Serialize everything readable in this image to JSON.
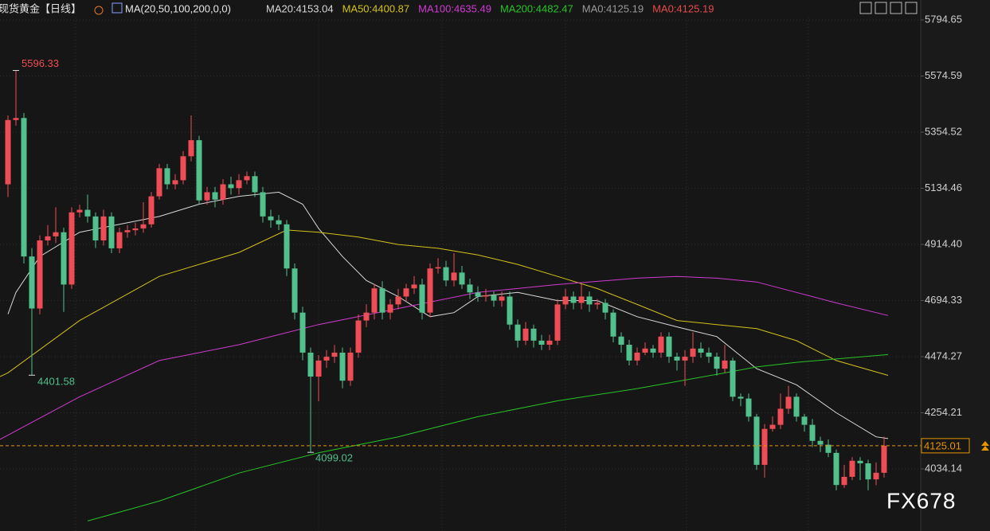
{
  "chart_data": {
    "type": "candlestick",
    "title": "现货黄金【日线】",
    "indicator": "MA(20,50,100,200,0,0)",
    "legend": [
      {
        "text": "MA20:4153.04",
        "color": "#d9d9d9"
      },
      {
        "text": "MA50:4400.87",
        "color": "#d4c21a"
      },
      {
        "text": "MA100:4635.49",
        "color": "#d23ad2"
      },
      {
        "text": "MA200:4482.47",
        "color": "#27c427"
      },
      {
        "text": "MA0:4125.19",
        "color": "#9a9a9a"
      },
      {
        "text": "MA0:4125.19",
        "color": "#e84a4a"
      }
    ],
    "watermark": "FX678",
    "up_color": "#ee4d55",
    "down_color": "#52c08c",
    "open": [
      5150,
      5402,
      5410,
      4867,
      4663,
      4930,
      4946,
      4962,
      4757,
      5040,
      5050,
      5024,
      4930,
      5024,
      4899,
      4962,
      4970,
      4977,
      4993,
      5103,
      5213,
      5150,
      5166,
      5260,
      5323,
      5087,
      5119,
      5090,
      5150,
      5135,
      5166,
      5182,
      5119,
      5024,
      5009,
      4993,
      4820,
      4647,
      4490,
      4396,
      4459,
      4474,
      4490,
      4380,
      4490,
      4616,
      4647,
      4742,
      4647,
      4679,
      4710,
      4742,
      4757,
      4647,
      4820,
      4825,
      4773,
      4804,
      4757,
      4726,
      4710,
      4715,
      4694,
      4710,
      4600,
      4537,
      4584,
      4537,
      4521,
      4537,
      4679,
      4710,
      4685,
      4710,
      4679,
      4685,
      4647,
      4553,
      4521,
      4459,
      4490,
      4506,
      4490,
      4553,
      4474,
      4459,
      4474,
      4506,
      4490,
      4474,
      4427,
      4459,
      4317,
      4310,
      4239,
      4050,
      4191,
      4207,
      4270,
      4317,
      4239,
      4207,
      4144,
      4129,
      4097,
      3971,
      4003,
      4066,
      4056,
      3993,
      4019
    ],
    "high": [
      5420,
      5596.33,
      5430,
      4900,
      4950,
      4990,
      5060,
      4980,
      5060,
      5070,
      5110,
      5040,
      5050,
      5040,
      4980,
      4990,
      5000,
      5080,
      5120,
      5230,
      5230,
      5190,
      5280,
      5420,
      5340,
      5140,
      5140,
      5170,
      5180,
      5190,
      5200,
      5200,
      5140,
      5050,
      5030,
      5010,
      4840,
      4670,
      4510,
      4480,
      4500,
      4520,
      4510,
      4510,
      4640,
      4680,
      4760,
      4770,
      4700,
      4740,
      4760,
      4790,
      4780,
      4840,
      4860,
      4850,
      4880,
      4830,
      4780,
      4750,
      4740,
      4730,
      4730,
      4730,
      4620,
      4610,
      4600,
      4560,
      4560,
      4700,
      4740,
      4730,
      4760,
      4730,
      4700,
      4700,
      4660,
      4570,
      4540,
      4510,
      4530,
      4520,
      4570,
      4570,
      4490,
      4500,
      4570,
      4530,
      4510,
      4490,
      4520,
      4470,
      4330,
      4330,
      4250,
      4210,
      4240,
      4330,
      4360,
      4330,
      4250,
      4230,
      4160,
      4150,
      4110,
      4050,
      4080,
      4080,
      4070,
      4060,
      4160
    ],
    "low": [
      5100,
      5380,
      4840,
      4401.58,
      4640,
      4910,
      4920,
      4650,
      4740,
      5020,
      5000,
      4900,
      4910,
      4880,
      4880,
      4940,
      4950,
      4960,
      4980,
      5090,
      5130,
      5130,
      5150,
      5240,
      5070,
      5070,
      5060,
      5070,
      5110,
      5110,
      5150,
      5100,
      5000,
      4980,
      4970,
      4790,
      4620,
      4460,
      4099.02,
      4300,
      4430,
      4450,
      4350,
      4360,
      4470,
      4590,
      4620,
      4620,
      4620,
      4660,
      4690,
      4720,
      4620,
      4630,
      4800,
      4750,
      4750,
      4740,
      4700,
      4690,
      4690,
      4670,
      4670,
      4580,
      4510,
      4520,
      4510,
      4500,
      4500,
      4520,
      4660,
      4660,
      4660,
      4650,
      4660,
      4620,
      4530,
      4490,
      4440,
      4440,
      4480,
      4470,
      4470,
      4450,
      4420,
      4360,
      4450,
      4470,
      4450,
      4400,
      4410,
      4300,
      4280,
      4220,
      4030,
      4000,
      4180,
      4190,
      4250,
      4220,
      4180,
      4120,
      4100,
      4080,
      3950,
      3960,
      3990,
      3990,
      3950,
      3970,
      4000
    ],
    "close": [
      5402,
      5410,
      4867,
      4663,
      4930,
      4946,
      4962,
      4757,
      5040,
      5050,
      5024,
      4930,
      5024,
      4899,
      4962,
      4970,
      4977,
      4993,
      5103,
      5213,
      5150,
      5166,
      5260,
      5323,
      5087,
      5119,
      5090,
      5150,
      5135,
      5166,
      5182,
      5119,
      5024,
      5009,
      4993,
      4820,
      4647,
      4490,
      4396,
      4459,
      4474,
      4490,
      4380,
      4490,
      4616,
      4647,
      4742,
      4647,
      4679,
      4710,
      4742,
      4757,
      4647,
      4820,
      4825,
      4773,
      4804,
      4757,
      4726,
      4710,
      4715,
      4694,
      4710,
      4600,
      4537,
      4584,
      4537,
      4521,
      4537,
      4679,
      4710,
      4685,
      4710,
      4679,
      4685,
      4647,
      4553,
      4521,
      4459,
      4490,
      4506,
      4490,
      4553,
      4474,
      4459,
      4474,
      4506,
      4490,
      4474,
      4427,
      4459,
      4317,
      4310,
      4239,
      4050,
      4191,
      4207,
      4270,
      4317,
      4239,
      4207,
      4144,
      4129,
      4097,
      3971,
      4003,
      4066,
      4056,
      3993,
      4019,
      4125.01
    ],
    "lines": [
      {
        "color": "#d9d9d9",
        "x": [
          0,
          1,
          4,
          9,
          14,
          19,
          24,
          29,
          34,
          37,
          39,
          42,
          45,
          49,
          53,
          56,
          59,
          64,
          69,
          74,
          79,
          84,
          89,
          94,
          99,
          104,
          109,
          110.5
        ],
        "values": [
          4641,
          4726,
          4867,
          4962,
          4993,
          5024,
          5072,
          5103,
          5119,
          5072,
          4977,
          4867,
          4773,
          4710,
          4631,
          4647,
          4710,
          4726,
          4694,
          4694,
          4631,
          4591,
          4553,
          4427,
          4364,
          4254,
          4160,
          4153.04
        ]
      },
      {
        "color": "#d4c21a",
        "x": [
          -1,
          0,
          9,
          19,
          29,
          35,
          39,
          44,
          49,
          54,
          59,
          64,
          69,
          74,
          79,
          84,
          89,
          94,
          99,
          104,
          110.5
        ],
        "values": [
          4396,
          4411,
          4616,
          4789,
          4883,
          4971,
          4962,
          4943,
          4914,
          4899,
          4873,
          4836,
          4789,
          4741,
          4679,
          4616,
          4600,
          4584,
          4537,
          4459,
          4400.87
        ]
      },
      {
        "color": "#d23ad2",
        "x": [
          -1,
          9,
          19,
          29,
          39,
          49,
          59,
          69,
          79,
          84,
          89,
          94,
          99,
          104,
          110.5
        ],
        "values": [
          4150,
          4317,
          4459,
          4521,
          4600,
          4663,
          4726,
          4757,
          4782,
          4789,
          4782,
          4767,
          4726,
          4685,
          4635.49
        ]
      },
      {
        "color": "#27c427",
        "x": [
          10,
          19,
          29,
          39,
          49,
          59,
          69,
          79,
          89,
          94,
          99,
          110.5
        ],
        "values": [
          3830,
          3908,
          4018,
          4097,
          4160,
          4239,
          4301,
          4349,
          4405,
          4434,
          4452,
          4482.47
        ]
      }
    ],
    "xlim": [
      -1,
      114.5
    ],
    "ylim": [
      3790.6,
      5872.7
    ],
    "yticks": [
      5794.65,
      5574.59,
      5354.52,
      {
        "value": 5134.46,
        "label": "5134.46"
      },
      {
        "value": 4914.4,
        "label": "4914.40"
      },
      4694.33,
      4474.27,
      4254.21,
      4034.14
    ],
    "grid": true
  }
}
